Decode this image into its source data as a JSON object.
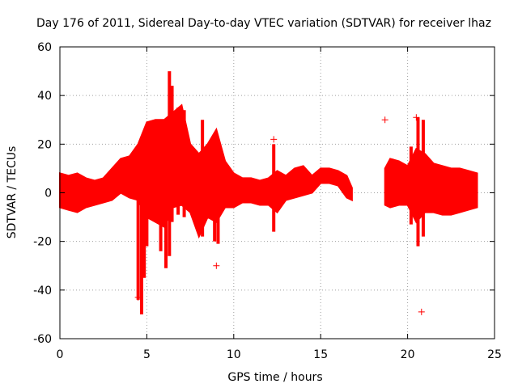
{
  "chart_data": {
    "type": "scatter",
    "title": "Day 176 of 2011, Sidereal Day-to-day VTEC variation (SDTVAR) for receiver lhaz",
    "xlabel": "GPS time / hours",
    "ylabel": "SDTVAR / TECUs",
    "xlim": [
      0,
      25
    ],
    "ylim": [
      -60,
      60
    ],
    "x_ticks": [
      0,
      5,
      10,
      15,
      20,
      25
    ],
    "y_ticks": [
      60,
      40,
      20,
      0,
      -20,
      -40,
      -60
    ],
    "x_tick_labels": [
      "0",
      "5",
      "10",
      "15",
      "20",
      "25"
    ],
    "y_tick_labels": [
      "60",
      "40",
      "20",
      "0",
      "-20",
      "-40",
      "-60"
    ],
    "grid": true,
    "marker": "+",
    "series_color": "#ff0000",
    "envelope": [
      {
        "x": 0.0,
        "lo": -6,
        "hi": 8
      },
      {
        "x": 0.5,
        "lo": -7,
        "hi": 7
      },
      {
        "x": 1.0,
        "lo": -8,
        "hi": 8
      },
      {
        "x": 1.5,
        "lo": -6,
        "hi": 6
      },
      {
        "x": 2.0,
        "lo": -5,
        "hi": 5
      },
      {
        "x": 2.5,
        "lo": -4,
        "hi": 6
      },
      {
        "x": 3.0,
        "lo": -3,
        "hi": 10
      },
      {
        "x": 3.5,
        "lo": 0,
        "hi": 14
      },
      {
        "x": 4.0,
        "lo": -2,
        "hi": 15
      },
      {
        "x": 4.5,
        "lo": -3,
        "hi": 20
      },
      {
        "x": 5.0,
        "lo": -10,
        "hi": 29
      },
      {
        "x": 5.5,
        "lo": -12,
        "hi": 30
      },
      {
        "x": 6.0,
        "lo": -14,
        "hi": 30
      },
      {
        "x": 6.5,
        "lo": -6,
        "hi": 33
      },
      {
        "x": 7.0,
        "lo": -5,
        "hi": 36
      },
      {
        "x": 7.5,
        "lo": -8,
        "hi": 20
      },
      {
        "x": 8.0,
        "lo": -18,
        "hi": 16
      },
      {
        "x": 8.5,
        "lo": -10,
        "hi": 20
      },
      {
        "x": 9.0,
        "lo": -12,
        "hi": 26
      },
      {
        "x": 9.5,
        "lo": -6,
        "hi": 13
      },
      {
        "x": 10.0,
        "lo": -6,
        "hi": 8
      },
      {
        "x": 10.5,
        "lo": -4,
        "hi": 6
      },
      {
        "x": 11.0,
        "lo": -4,
        "hi": 6
      },
      {
        "x": 11.5,
        "lo": -5,
        "hi": 5
      },
      {
        "x": 12.0,
        "lo": -5,
        "hi": 6
      },
      {
        "x": 12.5,
        "lo": -8,
        "hi": 9
      },
      {
        "x": 13.0,
        "lo": -3,
        "hi": 7
      },
      {
        "x": 13.5,
        "lo": -2,
        "hi": 10
      },
      {
        "x": 14.0,
        "lo": -1,
        "hi": 11
      },
      {
        "x": 14.5,
        "lo": 0,
        "hi": 7
      },
      {
        "x": 15.0,
        "lo": 4,
        "hi": 10
      },
      {
        "x": 15.5,
        "lo": 4,
        "hi": 10
      },
      {
        "x": 16.0,
        "lo": 3,
        "hi": 9
      },
      {
        "x": 16.5,
        "lo": -2,
        "hi": 7
      },
      {
        "x": 16.8,
        "lo": -3,
        "hi": 2
      },
      {
        "x": 18.7,
        "lo": -5,
        "hi": 10
      },
      {
        "x": 19.0,
        "lo": -6,
        "hi": 14
      },
      {
        "x": 19.5,
        "lo": -5,
        "hi": 13
      },
      {
        "x": 20.0,
        "lo": -5,
        "hi": 11
      },
      {
        "x": 20.5,
        "lo": -12,
        "hi": 18
      },
      {
        "x": 21.0,
        "lo": -8,
        "hi": 16
      },
      {
        "x": 21.5,
        "lo": -8,
        "hi": 12
      },
      {
        "x": 22.0,
        "lo": -9,
        "hi": 11
      },
      {
        "x": 22.5,
        "lo": -9,
        "hi": 10
      },
      {
        "x": 23.0,
        "lo": -8,
        "hi": 10
      },
      {
        "x": 23.5,
        "lo": -7,
        "hi": 9
      },
      {
        "x": 24.0,
        "lo": -6,
        "hi": 8
      }
    ],
    "spikes": [
      {
        "x": 4.5,
        "lo": -44,
        "hi": 4
      },
      {
        "x": 4.7,
        "lo": -50,
        "hi": 18
      },
      {
        "x": 4.85,
        "lo": -35,
        "hi": 22
      },
      {
        "x": 5.0,
        "lo": -22,
        "hi": 27
      },
      {
        "x": 5.8,
        "lo": -24,
        "hi": 28
      },
      {
        "x": 6.1,
        "lo": -31,
        "hi": 30
      },
      {
        "x": 6.3,
        "lo": -26,
        "hi": 50
      },
      {
        "x": 6.45,
        "lo": -12,
        "hi": 44
      },
      {
        "x": 6.8,
        "lo": -9,
        "hi": 35
      },
      {
        "x": 7.15,
        "lo": -10,
        "hi": 34
      },
      {
        "x": 8.2,
        "lo": -18,
        "hi": 30
      },
      {
        "x": 8.9,
        "lo": -20,
        "hi": 22
      },
      {
        "x": 9.1,
        "lo": -21,
        "hi": 17
      },
      {
        "x": 12.3,
        "lo": -16,
        "hi": 20
      },
      {
        "x": 19.1,
        "lo": -6,
        "hi": 14
      },
      {
        "x": 20.2,
        "lo": -13,
        "hi": 19
      },
      {
        "x": 20.6,
        "lo": -22,
        "hi": 31
      },
      {
        "x": 20.9,
        "lo": -18,
        "hi": 30
      }
    ],
    "outliers": [
      {
        "x": 4.5,
        "y": -43
      },
      {
        "x": 9.0,
        "y": -30
      },
      {
        "x": 12.3,
        "y": 22
      },
      {
        "x": 18.7,
        "y": 30
      },
      {
        "x": 20.8,
        "y": -49
      },
      {
        "x": 20.5,
        "y": 31
      }
    ]
  }
}
